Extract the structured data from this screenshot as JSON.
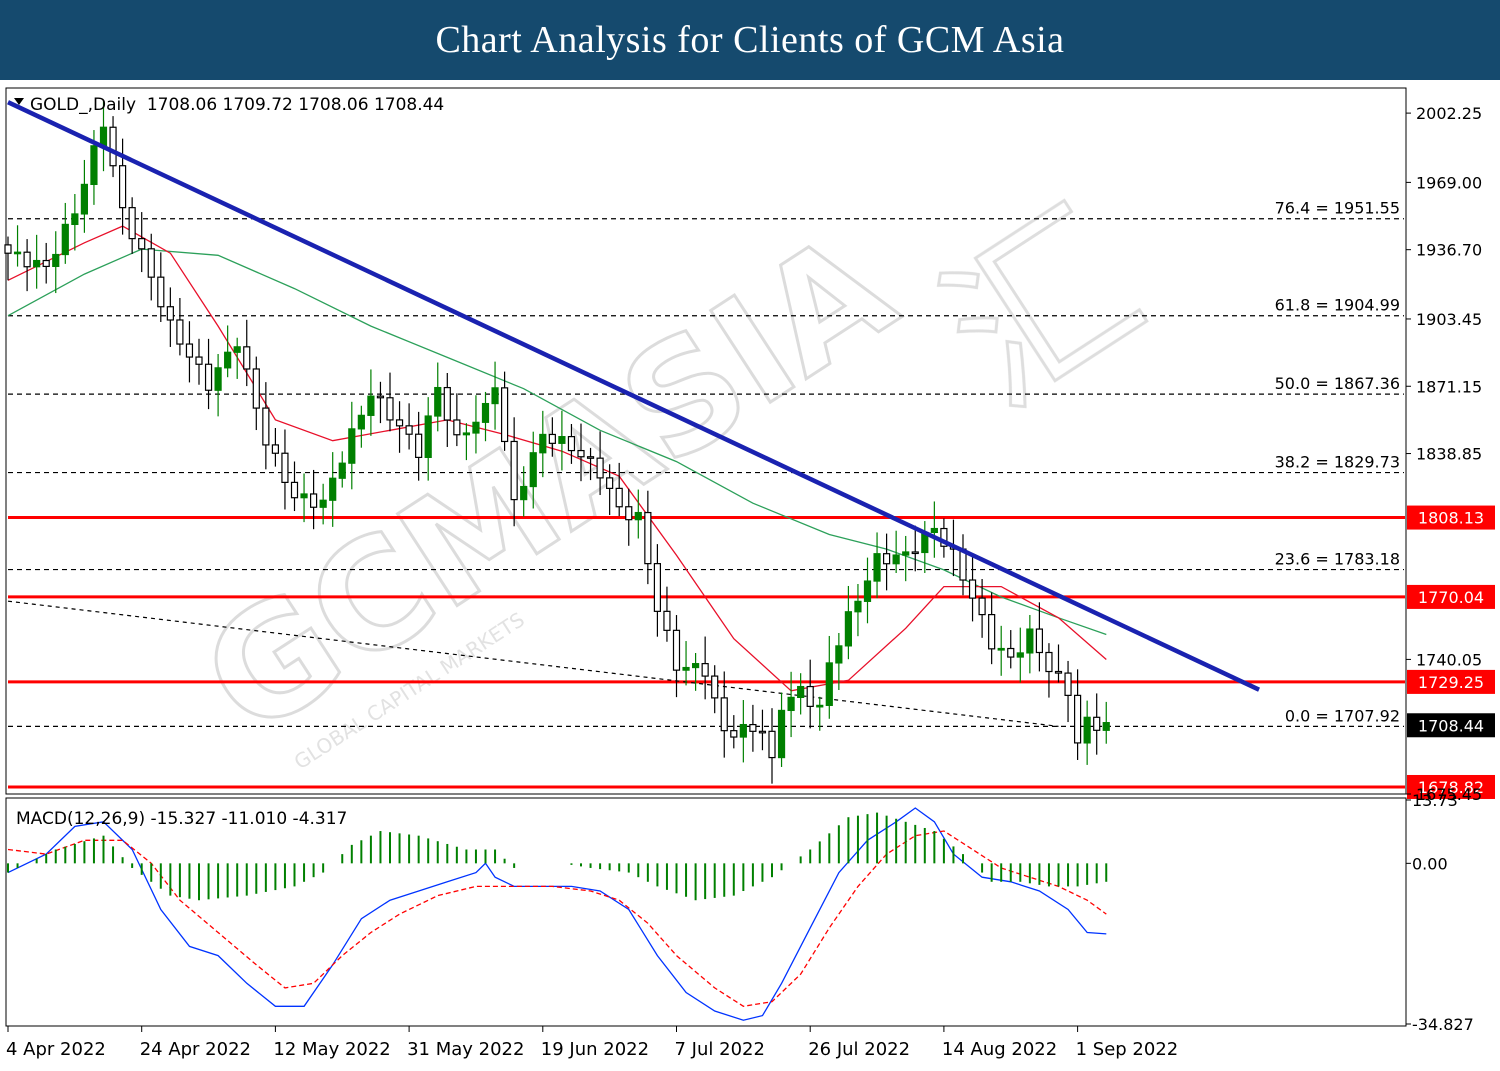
{
  "header": {
    "title": "Chart Analysis for Clients of GCM Asia"
  },
  "watermark": {
    "text": "GCMASIA",
    "tagline": "GLOBAL CAPITAL MARKETS",
    "chinese": "汇"
  },
  "chart_data": {
    "type": "candlestick",
    "colors": {
      "bull": "#008000",
      "bear": "#000000",
      "ma_fast": "#e8102a",
      "ma_slow": "#2ca05a",
      "trendline": "#1a22b0",
      "level": "#ff0000",
      "fib": "#000000",
      "macd": "#0033ff",
      "signal": "#ff0000",
      "histogram": "#008000"
    },
    "main_panel": {
      "legend": "GOLD_,Daily  1708.06 1709.72 1708.06 1708.44",
      "ylim": [
        1675.45,
        2014.3
      ],
      "y_ticks": [
        "2002.25",
        "1969.00",
        "1936.70",
        "1903.45",
        "1871.15",
        "1838.85",
        "1740.05",
        "1675.45"
      ],
      "x_ticks": [
        {
          "index": 0,
          "label": "4 Apr 2022"
        },
        {
          "index": 14,
          "label": "24 Apr 2022"
        },
        {
          "index": 28,
          "label": "12 May 2022"
        },
        {
          "index": 42,
          "label": "31 May 2022"
        },
        {
          "index": 56,
          "label": "19 Jun 2022"
        },
        {
          "index": 70,
          "label": "7 Jul 2022"
        },
        {
          "index": 84,
          "label": "26 Jul 2022"
        },
        {
          "index": 98,
          "label": "14 Aug 2022"
        },
        {
          "index": 112,
          "label": "1 Sep 2022"
        }
      ],
      "fib_levels": [
        {
          "label": "76.4 = 1951.55",
          "value": 1951.55
        },
        {
          "label": "61.8 = 1904.99",
          "value": 1904.99
        },
        {
          "label": "50.0 = 1867.36",
          "value": 1867.36
        },
        {
          "label": "38.2 = 1829.73",
          "value": 1829.73
        },
        {
          "label": "23.6 = 1783.18",
          "value": 1783.18
        },
        {
          "label": "0.0 = 1707.92",
          "value": 1707.92
        }
      ],
      "horizontal_levels": [
        {
          "label": "1808.13",
          "value": 1808.13
        },
        {
          "label": "1770.04",
          "value": 1770.04
        },
        {
          "label": "1729.25",
          "value": 1729.25
        },
        {
          "label": "1678.82",
          "value": 1678.82
        }
      ],
      "current_price": {
        "label": "1708.44",
        "value": 1708.44
      },
      "trendline": [
        {
          "index": 0,
          "value": 2007.5
        },
        {
          "index": 131,
          "value": 1725.5
        }
      ],
      "dashed_trendline": [
        {
          "index": 0,
          "value": 1768.0
        },
        {
          "index": 110,
          "value": 1707.9
        }
      ],
      "key_points": [
        {
          "index": 0,
          "value": 1935
        },
        {
          "index": 4,
          "value": 1928
        },
        {
          "index": 7,
          "value": 1955
        },
        {
          "index": 10,
          "value": 1998
        },
        {
          "index": 12,
          "value": 1955
        },
        {
          "index": 14,
          "value": 1935
        },
        {
          "index": 17,
          "value": 1900
        },
        {
          "index": 21,
          "value": 1872
        },
        {
          "index": 24,
          "value": 1893
        },
        {
          "index": 27,
          "value": 1845
        },
        {
          "index": 30,
          "value": 1818
        },
        {
          "index": 33,
          "value": 1815
        },
        {
          "index": 36,
          "value": 1848
        },
        {
          "index": 38,
          "value": 1868
        },
        {
          "index": 41,
          "value": 1852
        },
        {
          "index": 43,
          "value": 1840
        },
        {
          "index": 45,
          "value": 1870
        },
        {
          "index": 47,
          "value": 1845
        },
        {
          "index": 50,
          "value": 1860
        },
        {
          "index": 51,
          "value": 1873
        },
        {
          "index": 53,
          "value": 1815
        },
        {
          "index": 56,
          "value": 1848
        },
        {
          "index": 59,
          "value": 1842
        },
        {
          "index": 62,
          "value": 1830
        },
        {
          "index": 64,
          "value": 1812
        },
        {
          "index": 66,
          "value": 1808
        },
        {
          "index": 68,
          "value": 1765
        },
        {
          "index": 70,
          "value": 1737
        },
        {
          "index": 73,
          "value": 1735
        },
        {
          "index": 75,
          "value": 1705
        },
        {
          "index": 79,
          "value": 1707
        },
        {
          "index": 80,
          "value": 1690
        },
        {
          "index": 81,
          "value": 1718
        },
        {
          "index": 83,
          "value": 1725
        },
        {
          "index": 85,
          "value": 1716
        },
        {
          "index": 86,
          "value": 1738
        },
        {
          "index": 88,
          "value": 1760
        },
        {
          "index": 91,
          "value": 1788
        },
        {
          "index": 94,
          "value": 1790
        },
        {
          "index": 97,
          "value": 1803
        },
        {
          "index": 99,
          "value": 1790
        },
        {
          "index": 101,
          "value": 1770
        },
        {
          "index": 103,
          "value": 1748
        },
        {
          "index": 105,
          "value": 1740
        },
        {
          "index": 107,
          "value": 1752
        },
        {
          "index": 109,
          "value": 1736
        },
        {
          "index": 111,
          "value": 1725
        },
        {
          "index": 112,
          "value": 1700
        },
        {
          "index": 113,
          "value": 1710
        },
        {
          "index": 115,
          "value": 1708
        }
      ],
      "ma_fast": [
        {
          "index": 0,
          "value": 1922
        },
        {
          "index": 8,
          "value": 1940
        },
        {
          "index": 12,
          "value": 1948
        },
        {
          "index": 17,
          "value": 1935
        },
        {
          "index": 22,
          "value": 1900
        },
        {
          "index": 28,
          "value": 1855
        },
        {
          "index": 34,
          "value": 1845
        },
        {
          "index": 40,
          "value": 1850
        },
        {
          "index": 46,
          "value": 1855
        },
        {
          "index": 52,
          "value": 1848
        },
        {
          "index": 58,
          "value": 1840
        },
        {
          "index": 64,
          "value": 1828
        },
        {
          "index": 70,
          "value": 1790
        },
        {
          "index": 76,
          "value": 1750
        },
        {
          "index": 82,
          "value": 1725
        },
        {
          "index": 88,
          "value": 1730
        },
        {
          "index": 94,
          "value": 1755
        },
        {
          "index": 98,
          "value": 1775
        },
        {
          "index": 104,
          "value": 1775
        },
        {
          "index": 110,
          "value": 1760
        },
        {
          "index": 115,
          "value": 1740
        }
      ],
      "ma_slow": [
        {
          "index": 0,
          "value": 1905
        },
        {
          "index": 8,
          "value": 1925
        },
        {
          "index": 14,
          "value": 1937
        },
        {
          "index": 22,
          "value": 1934
        },
        {
          "index": 30,
          "value": 1918
        },
        {
          "index": 38,
          "value": 1900
        },
        {
          "index": 46,
          "value": 1885
        },
        {
          "index": 54,
          "value": 1870
        },
        {
          "index": 62,
          "value": 1850
        },
        {
          "index": 70,
          "value": 1835
        },
        {
          "index": 78,
          "value": 1815
        },
        {
          "index": 86,
          "value": 1800
        },
        {
          "index": 92,
          "value": 1793
        },
        {
          "index": 98,
          "value": 1783
        },
        {
          "index": 104,
          "value": 1770
        },
        {
          "index": 110,
          "value": 1760
        },
        {
          "index": 115,
          "value": 1752
        }
      ]
    },
    "macd_panel": {
      "legend": "MACD(12,26,9) -15.327 -11.010 -4.317",
      "ylim": [
        -34.827,
        13.73
      ],
      "y_ticks": [
        "13.73",
        "0.00",
        "-34.827"
      ],
      "histogram": [
        {
          "index": 0,
          "value": -2
        },
        {
          "index": 5,
          "value": 3
        },
        {
          "index": 10,
          "value": 6
        },
        {
          "index": 13,
          "value": -1
        },
        {
          "index": 17,
          "value": -7
        },
        {
          "index": 20,
          "value": -8
        },
        {
          "index": 25,
          "value": -7
        },
        {
          "index": 30,
          "value": -5
        },
        {
          "index": 33,
          "value": -2
        },
        {
          "index": 36,
          "value": 4
        },
        {
          "index": 39,
          "value": 7
        },
        {
          "index": 43,
          "value": 6
        },
        {
          "index": 48,
          "value": 3
        },
        {
          "index": 51,
          "value": 3
        },
        {
          "index": 53,
          "value": -1
        },
        {
          "index": 58,
          "value": 0
        },
        {
          "index": 61,
          "value": -1
        },
        {
          "index": 65,
          "value": -2
        },
        {
          "index": 68,
          "value": -5
        },
        {
          "index": 72,
          "value": -8
        },
        {
          "index": 76,
          "value": -7
        },
        {
          "index": 80,
          "value": -3
        },
        {
          "index": 84,
          "value": 3
        },
        {
          "index": 88,
          "value": 10
        },
        {
          "index": 91,
          "value": 11
        },
        {
          "index": 94,
          "value": 9
        },
        {
          "index": 97,
          "value": 7
        },
        {
          "index": 100,
          "value": 2
        },
        {
          "index": 103,
          "value": -4
        },
        {
          "index": 106,
          "value": -4
        },
        {
          "index": 109,
          "value": -5
        },
        {
          "index": 112,
          "value": -5
        },
        {
          "index": 115,
          "value": -4
        }
      ],
      "macd": [
        {
          "index": 0,
          "value": -2
        },
        {
          "index": 4,
          "value": 2
        },
        {
          "index": 7,
          "value": 8
        },
        {
          "index": 10,
          "value": 9
        },
        {
          "index": 13,
          "value": 3
        },
        {
          "index": 16,
          "value": -10
        },
        {
          "index": 19,
          "value": -18
        },
        {
          "index": 22,
          "value": -20
        },
        {
          "index": 25,
          "value": -26
        },
        {
          "index": 28,
          "value": -31
        },
        {
          "index": 31,
          "value": -31
        },
        {
          "index": 34,
          "value": -22
        },
        {
          "index": 37,
          "value": -12
        },
        {
          "index": 40,
          "value": -8
        },
        {
          "index": 43,
          "value": -6
        },
        {
          "index": 46,
          "value": -4
        },
        {
          "index": 49,
          "value": -2
        },
        {
          "index": 50,
          "value": 0
        },
        {
          "index": 51,
          "value": -3
        },
        {
          "index": 53,
          "value": -5
        },
        {
          "index": 56,
          "value": -5
        },
        {
          "index": 59,
          "value": -5
        },
        {
          "index": 62,
          "value": -6
        },
        {
          "index": 65,
          "value": -10
        },
        {
          "index": 68,
          "value": -20
        },
        {
          "index": 71,
          "value": -28
        },
        {
          "index": 74,
          "value": -32
        },
        {
          "index": 77,
          "value": -34
        },
        {
          "index": 79,
          "value": -33
        },
        {
          "index": 81,
          "value": -26
        },
        {
          "index": 84,
          "value": -14
        },
        {
          "index": 87,
          "value": -2
        },
        {
          "index": 90,
          "value": 5
        },
        {
          "index": 93,
          "value": 9
        },
        {
          "index": 95,
          "value": 12
        },
        {
          "index": 97,
          "value": 9
        },
        {
          "index": 99,
          "value": 2
        },
        {
          "index": 102,
          "value": -3
        },
        {
          "index": 105,
          "value": -4
        },
        {
          "index": 108,
          "value": -6
        },
        {
          "index": 111,
          "value": -10
        },
        {
          "index": 113,
          "value": -15
        },
        {
          "index": 115,
          "value": -15.3
        }
      ],
      "signal": [
        {
          "index": 0,
          "value": 3
        },
        {
          "index": 4,
          "value": 2
        },
        {
          "index": 8,
          "value": 5
        },
        {
          "index": 12,
          "value": 5
        },
        {
          "index": 15,
          "value": 0
        },
        {
          "index": 18,
          "value": -8
        },
        {
          "index": 22,
          "value": -15
        },
        {
          "index": 26,
          "value": -22
        },
        {
          "index": 29,
          "value": -27
        },
        {
          "index": 32,
          "value": -26
        },
        {
          "index": 35,
          "value": -20
        },
        {
          "index": 38,
          "value": -15
        },
        {
          "index": 41,
          "value": -11
        },
        {
          "index": 45,
          "value": -7
        },
        {
          "index": 49,
          "value": -5
        },
        {
          "index": 53,
          "value": -5
        },
        {
          "index": 57,
          "value": -5
        },
        {
          "index": 61,
          "value": -6
        },
        {
          "index": 64,
          "value": -8
        },
        {
          "index": 67,
          "value": -13
        },
        {
          "index": 70,
          "value": -20
        },
        {
          "index": 74,
          "value": -27
        },
        {
          "index": 77,
          "value": -31
        },
        {
          "index": 80,
          "value": -30
        },
        {
          "index": 83,
          "value": -24
        },
        {
          "index": 86,
          "value": -14
        },
        {
          "index": 89,
          "value": -5
        },
        {
          "index": 92,
          "value": 2
        },
        {
          "index": 95,
          "value": 6
        },
        {
          "index": 98,
          "value": 7
        },
        {
          "index": 101,
          "value": 3
        },
        {
          "index": 104,
          "value": -1
        },
        {
          "index": 107,
          "value": -3
        },
        {
          "index": 110,
          "value": -5
        },
        {
          "index": 113,
          "value": -8
        },
        {
          "index": 115,
          "value": -11
        }
      ]
    }
  }
}
